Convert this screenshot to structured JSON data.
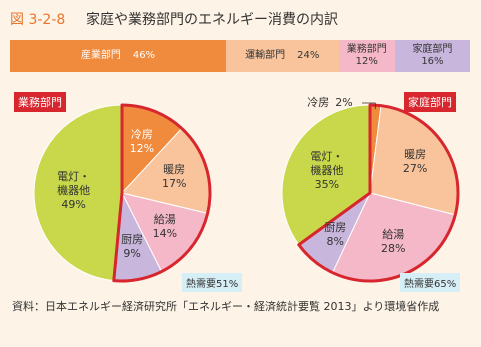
{
  "figure_label": "図 3-2-8",
  "title": "家庭や業務部門のエネルギー消費の内訳",
  "source": "資料：日本エネルギー経済研究所「エネルギー・経済統計要覧 2013」より環境省作成",
  "chart_data": [
    {
      "type": "stacked_bar",
      "categories": [
        "産業部門",
        "運輸部門",
        "業務部門",
        "家庭部門"
      ],
      "values": [
        46,
        24,
        12,
        16
      ],
      "value_labels": [
        "46%",
        "24%",
        "12%",
        "16%"
      ],
      "colors": [
        "#f08a3c",
        "#f9c49c",
        "#f4b8c8",
        "#c9b6dc"
      ]
    },
    {
      "type": "pie",
      "title": "業務部門",
      "categories": [
        "冷房",
        "暖房",
        "給湯",
        "厨房",
        "電灯・\n機器他"
      ],
      "values": [
        12,
        17,
        14,
        9,
        49
      ],
      "value_labels": [
        "12%",
        "17%",
        "14%",
        "9%",
        "49%"
      ],
      "colors": [
        "#f08a3c",
        "#f9c49c",
        "#f4b8c8",
        "#c9b6dc",
        "#c8d84a"
      ],
      "annotation": "熱需要51%"
    },
    {
      "type": "pie",
      "title": "家庭部門",
      "categories": [
        "冷房",
        "暖房",
        "給湯",
        "厨房",
        "電灯・\n機器他"
      ],
      "values": [
        2,
        27,
        28,
        8,
        35
      ],
      "value_labels": [
        "2%",
        "27%",
        "28%",
        "8%",
        "35%"
      ],
      "colors": [
        "#f08a3c",
        "#f9c49c",
        "#f4b8c8",
        "#c9b6dc",
        "#c8d84a"
      ],
      "annotation": "熱需要65%"
    }
  ]
}
